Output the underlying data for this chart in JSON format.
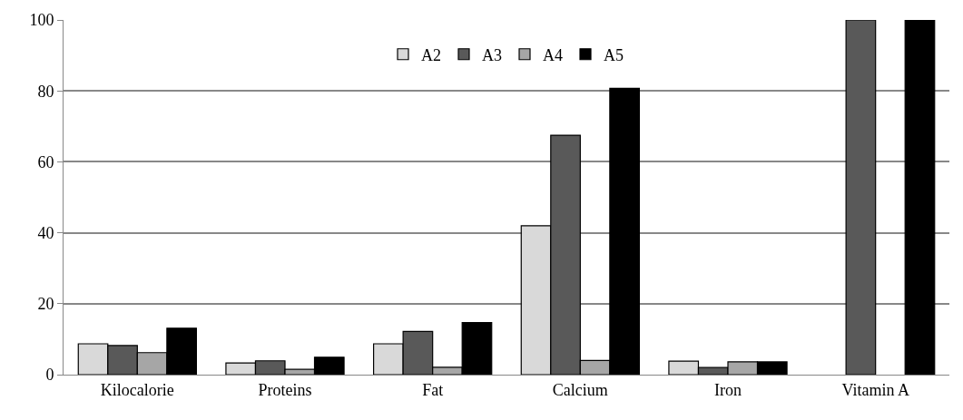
{
  "chart_data": {
    "type": "bar",
    "categories": [
      "Kilocalorie",
      "Proteins",
      "Fat",
      "Calcium",
      "Iron",
      "Vitamin A"
    ],
    "series": [
      {
        "name": "A2",
        "color": "#d9d9d9",
        "values": [
          8.7,
          3.3,
          8.7,
          42,
          3.8,
          null
        ]
      },
      {
        "name": "A3",
        "color": "#595959",
        "values": [
          8.2,
          3.9,
          12.2,
          67.5,
          2,
          100
        ]
      },
      {
        "name": "A4",
        "color": "#a6a6a6",
        "values": [
          6.2,
          1.5,
          2.1,
          4,
          3.6,
          null
        ]
      },
      {
        "name": "A5",
        "color": "#000000",
        "values": [
          13.1,
          4.9,
          14.7,
          80.7,
          3.6,
          100
        ]
      }
    ],
    "ylim": [
      0,
      100
    ],
    "yticks": [
      0,
      20,
      40,
      60,
      80,
      100
    ],
    "grid": "y",
    "legend": "top"
  }
}
